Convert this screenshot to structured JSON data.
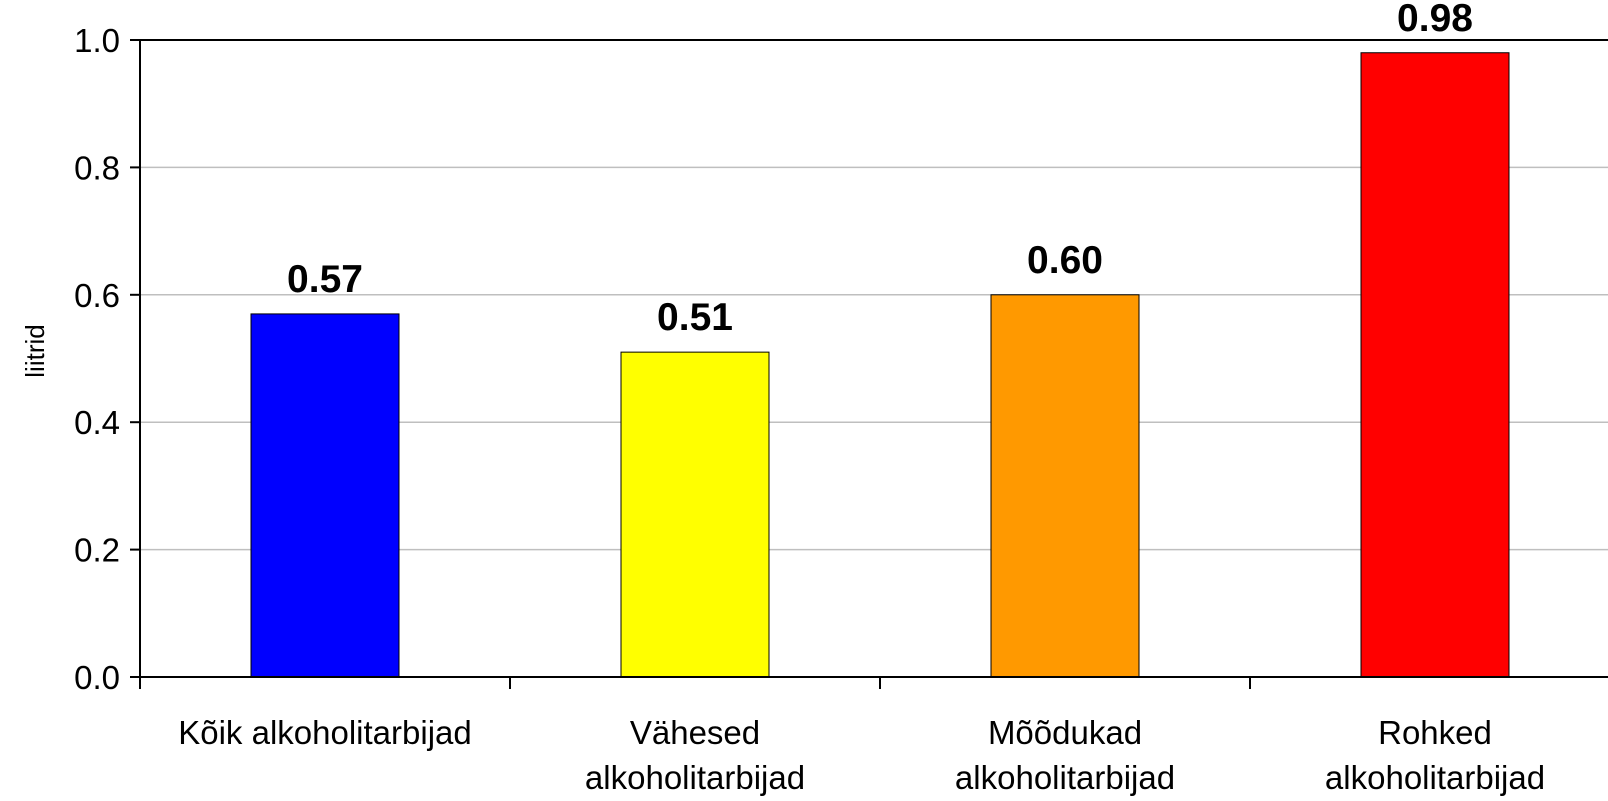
{
  "chart_data": {
    "type": "bar",
    "categories": [
      [
        "Kõik alkoholitarbijad"
      ],
      [
        "Vähesed",
        "alkoholitarbijad"
      ],
      [
        "Mõõdukad",
        "alkoholitarbijad"
      ],
      [
        "Rohked",
        "alkoholitarbijad"
      ]
    ],
    "values": [
      0.57,
      0.51,
      0.6,
      0.98
    ],
    "value_labels": [
      "0.57",
      "0.51",
      "0.60",
      "0.98"
    ],
    "bar_colors": [
      "#0000ff",
      "#ffff00",
      "#ff9900",
      "#ff0000"
    ],
    "title": "",
    "xlabel": "",
    "ylabel": "liitrid",
    "ylim": [
      0,
      1.0
    ],
    "yticks": [
      0.0,
      0.2,
      0.4,
      0.6,
      0.8,
      1.0
    ],
    "ytick_labels": [
      "0.0",
      "0.2",
      "0.4",
      "0.6",
      "0.8",
      "1.0"
    ],
    "grid": "horizontal",
    "legend": "none"
  }
}
